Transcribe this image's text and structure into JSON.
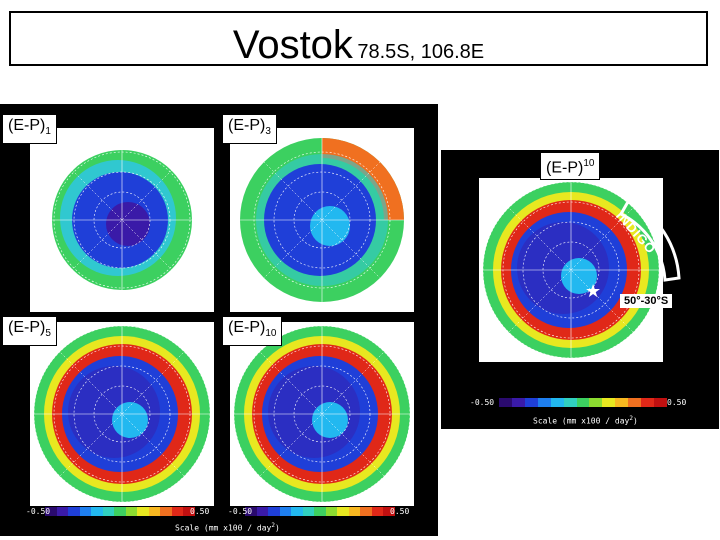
{
  "title": {
    "station": "Vostok",
    "coords": "78.5S, 106.8E"
  },
  "panels": [
    {
      "label_base": "(E-P)",
      "label_sub": "1"
    },
    {
      "label_base": "(E-P)",
      "label_sub": "3"
    },
    {
      "label_base": "(E-P)",
      "label_sub": "5"
    },
    {
      "label_base": "(E-P)",
      "label_sub": "10"
    }
  ],
  "right_panel": {
    "label_base": "(E-P)",
    "label_sup": "10",
    "indigo": "INDIGO",
    "latitude_band": "50°-30°S"
  },
  "scale": {
    "min": "-0.50",
    "max": "0.50",
    "caption_base": "Scale (mm x100 / day",
    "caption_exp": "2",
    "caption_end": ")"
  },
  "colors": {
    "background": "#000000",
    "colorbar": [
      "#2a0a6e",
      "#3a1aa8",
      "#1f3fd8",
      "#1e7ff0",
      "#22b8f0",
      "#30d0c0",
      "#3cd060",
      "#8cdc30",
      "#e8e820",
      "#f8b820",
      "#f07020",
      "#e02818",
      "#c01010"
    ]
  }
}
